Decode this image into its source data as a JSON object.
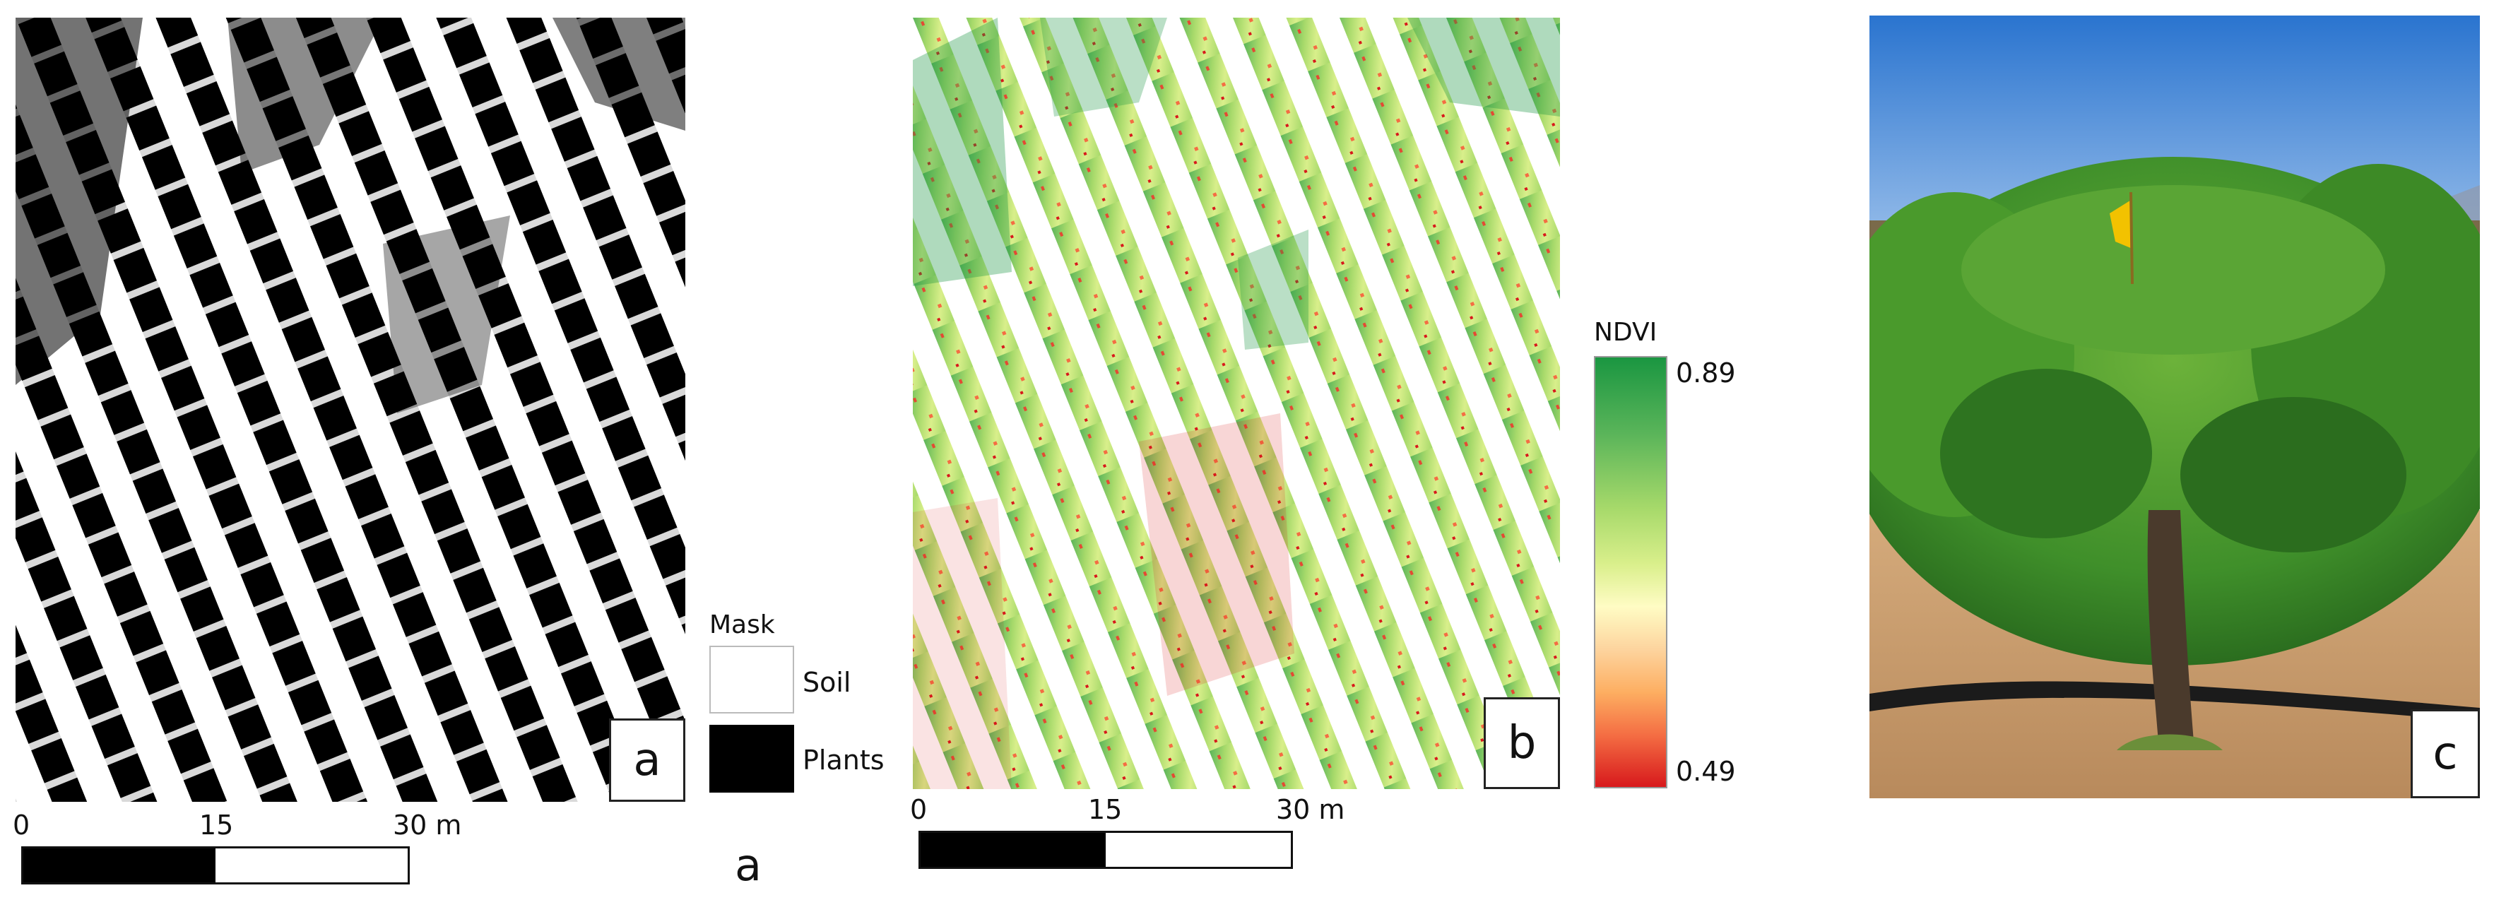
{
  "panel_a": {
    "letter": "a",
    "scale_ticks": [
      "0",
      "15",
      "30 m"
    ]
  },
  "mask_legend": {
    "title": "Mask",
    "items": [
      {
        "label": "Soil",
        "color": "#ffffff"
      },
      {
        "label": "Plants",
        "color": "#000000"
      }
    ]
  },
  "caption_letter": "a",
  "panel_b": {
    "letter": "b",
    "scale_ticks": [
      "0",
      "15",
      "30 m"
    ]
  },
  "ndvi_legend": {
    "title": "NDVI",
    "max_label": "0.89",
    "min_label": "0.49",
    "colors": [
      "#1a9641",
      "#a6d96a",
      "#fffcc4",
      "#fdae61",
      "#d7191c"
    ]
  },
  "panel_c": {
    "letter": "c",
    "colors": {
      "sky": "#2f7fd6",
      "foliage": "#3f8f2a",
      "soil": "#c79b6c",
      "flag": "#f2c200"
    }
  }
}
